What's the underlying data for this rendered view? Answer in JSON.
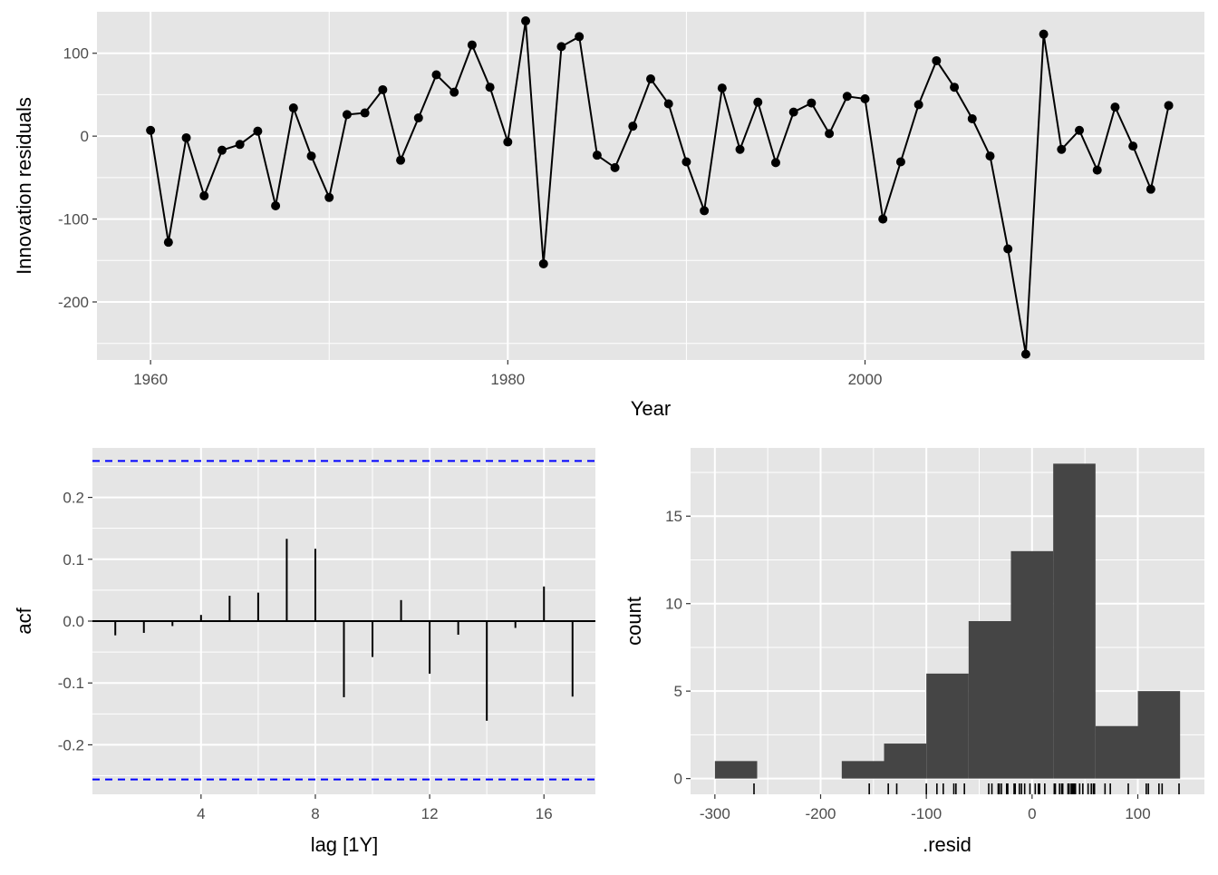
{
  "chart_data": [
    {
      "type": "line",
      "xlabel": "Year",
      "ylabel": "Innovation residuals",
      "xlim": [
        1957,
        2019
      ],
      "ylim": [
        -270,
        150
      ],
      "x_ticks": [
        1960,
        1980,
        2000
      ],
      "x_tick_labels": [
        "1960",
        "1980",
        "2000"
      ],
      "y_ticks": [
        100,
        0,
        -100,
        -200
      ],
      "y_tick_labels": [
        "100",
        "0",
        "-100",
        "-200"
      ],
      "points": true,
      "x": [
        1960,
        1961,
        1962,
        1963,
        1964,
        1965,
        1966,
        1967,
        1968,
        1969,
        1970,
        1971,
        1972,
        1973,
        1974,
        1975,
        1976,
        1977,
        1978,
        1979,
        1980,
        1981,
        1982,
        1983,
        1984,
        1985,
        1986,
        1987,
        1988,
        1989,
        1990,
        1991,
        1992,
        1993,
        1994,
        1995,
        1996,
        1997,
        1998,
        1999,
        2000,
        2001,
        2002,
        2003,
        2004,
        2005,
        2006,
        2007,
        2008,
        2009,
        2010,
        2011,
        2012,
        2013,
        2014,
        2015,
        2016,
        2017
      ],
      "y": [
        7,
        -128,
        -2,
        -72,
        -17,
        -10,
        6,
        -84,
        34,
        -24,
        -74,
        26,
        28,
        56,
        -29,
        22,
        74,
        53,
        110,
        59,
        -7,
        139,
        -154,
        108,
        120,
        -23,
        -38,
        12,
        69,
        39,
        -31,
        -90,
        58,
        -16,
        41,
        -32,
        29,
        40,
        3,
        48,
        45,
        -100,
        -31,
        38,
        91,
        59,
        21,
        -24,
        -136,
        -263,
        123,
        -16,
        7,
        -41,
        35,
        -12,
        -64,
        37
      ]
    },
    {
      "type": "bar",
      "subtype": "acf",
      "xlabel": "lag [1Y]",
      "ylabel": "acf",
      "xlim": [
        0.2,
        17.8
      ],
      "ylim": [
        -0.28,
        0.28
      ],
      "x_ticks": [
        4,
        8,
        12,
        16
      ],
      "x_tick_labels": [
        "4",
        "8",
        "12",
        "16"
      ],
      "y_ticks": [
        0.2,
        0.1,
        0.0,
        -0.1,
        -0.2
      ],
      "y_tick_labels": [
        "0.2",
        "0.1",
        "0.0",
        "-0.1",
        "-0.2"
      ],
      "lags": [
        1,
        2,
        3,
        4,
        5,
        6,
        7,
        8,
        9,
        10,
        11,
        12,
        13,
        14,
        15,
        16,
        17
      ],
      "values": [
        -0.023,
        -0.019,
        -0.008,
        0.01,
        0.041,
        0.046,
        0.133,
        0.117,
        -0.123,
        -0.058,
        0.034,
        -0.085,
        -0.022,
        -0.161,
        -0.011,
        0.056,
        -0.122
      ],
      "confidence_bounds": [
        0.259,
        -0.256
      ],
      "bound_color": "#0000ff"
    },
    {
      "type": "bar",
      "subtype": "histogram",
      "xlabel": ".resid",
      "ylabel": "count",
      "xlim": [
        -323,
        163
      ],
      "ylim": [
        -0.9,
        18.9
      ],
      "x_ticks": [
        -300,
        -200,
        -100,
        0,
        100
      ],
      "x_tick_labels": [
        "-300",
        "-200",
        "-100",
        "0",
        "100"
      ],
      "y_ticks": [
        0,
        5,
        10,
        15
      ],
      "y_tick_labels": [
        "0",
        "5",
        "10",
        "15"
      ],
      "bins": [
        {
          "x0": -300,
          "x1": -260,
          "count": 1
        },
        {
          "x0": -260,
          "x1": -220,
          "count": 0
        },
        {
          "x0": -220,
          "x1": -180,
          "count": 0
        },
        {
          "x0": -180,
          "x1": -140,
          "count": 1
        },
        {
          "x0": -140,
          "x1": -100,
          "count": 2
        },
        {
          "x0": -100,
          "x1": -60,
          "count": 6
        },
        {
          "x0": -60,
          "x1": -20,
          "count": 9
        },
        {
          "x0": -20,
          "x1": 20,
          "count": 13
        },
        {
          "x0": 20,
          "x1": 60,
          "count": 18
        },
        {
          "x0": 60,
          "x1": 100,
          "count": 3
        },
        {
          "x0": 100,
          "x1": 140,
          "count": 5
        }
      ],
      "rug": [
        -263,
        -154,
        -136,
        -128,
        -100,
        -90,
        -84,
        -74,
        -72,
        -64,
        -41,
        -38,
        -32,
        -31,
        -31,
        -29,
        -24,
        -24,
        -23,
        -17,
        -16,
        -16,
        -12,
        -10,
        -7,
        -2,
        3,
        6,
        7,
        7,
        12,
        21,
        22,
        26,
        28,
        29,
        34,
        35,
        37,
        38,
        39,
        40,
        41,
        45,
        48,
        53,
        56,
        58,
        59,
        59,
        69,
        74,
        91,
        108,
        110,
        120,
        123,
        139
      ],
      "bar_color": "#454545"
    }
  ],
  "colors": {
    "panel_background": "#e5e5e5",
    "grid": "#ffffff",
    "line": "#000000"
  }
}
